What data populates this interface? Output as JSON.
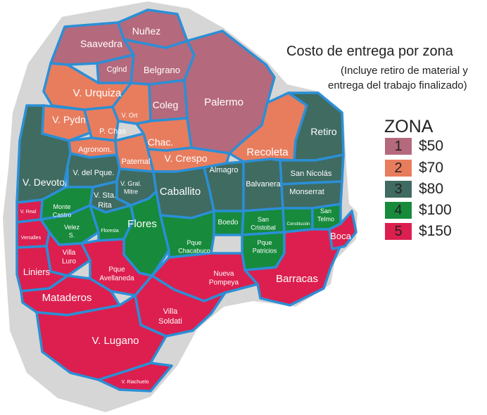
{
  "title": "Costo de entrega por zona",
  "subtitle_1": "(Incluye retiro de material y",
  "subtitle_2": "entrega del trabajo finalizado)",
  "legend": {
    "title": "ZONA",
    "items": [
      {
        "zone": "1",
        "price": "$50",
        "color": "#b5697c"
      },
      {
        "zone": "2",
        "price": "$70",
        "color": "#e87d5e"
      },
      {
        "zone": "3",
        "price": "$80",
        "color": "#3f6b61"
      },
      {
        "zone": "4",
        "price": "$100",
        "color": "#178a3c"
      },
      {
        "zone": "5",
        "price": "$150",
        "color": "#dc1f4f"
      }
    ]
  },
  "neighborhoods": [
    {
      "name": "Nuñez",
      "zone": 1
    },
    {
      "name": "Saavedra",
      "zone": 1
    },
    {
      "name": "Cglnd",
      "zone": 1
    },
    {
      "name": "Belgrano",
      "zone": 1
    },
    {
      "name": "Palermo",
      "zone": 1
    },
    {
      "name": "Coleg",
      "zone": 1
    },
    {
      "name": "V. Urquiza",
      "zone": 2
    },
    {
      "name": "V. Ort",
      "zone": 2
    },
    {
      "name": "V. Pydn",
      "zone": 2
    },
    {
      "name": "P. Chas",
      "zone": 2
    },
    {
      "name": "Chac.",
      "zone": 2
    },
    {
      "name": "Agronom.",
      "zone": 2
    },
    {
      "name": "Paternal",
      "zone": 2
    },
    {
      "name": "V. Crespo",
      "zone": 2
    },
    {
      "name": "Recoleta",
      "zone": 2
    },
    {
      "name": "Retiro",
      "zone": 3
    },
    {
      "name": "V. Devoto",
      "zone": 3
    },
    {
      "name": "V. del Pque.",
      "zone": 3
    },
    {
      "name": "Almagro",
      "zone": 3
    },
    {
      "name": "San Nicolás",
      "zone": 3
    },
    {
      "name": "V. Gral. Mitre",
      "zone": 3
    },
    {
      "name": "V. Sta. Rita",
      "zone": 3
    },
    {
      "name": "Caballito",
      "zone": 3
    },
    {
      "name": "Balvanera",
      "zone": 3
    },
    {
      "name": "Monserrat",
      "zone": 3
    },
    {
      "name": "Monte Castro",
      "zone": 4
    },
    {
      "name": "Velez S.",
      "zone": 4
    },
    {
      "name": "Floresta",
      "zone": 4
    },
    {
      "name": "Flores",
      "zone": 4
    },
    {
      "name": "Boedo",
      "zone": 4
    },
    {
      "name": "San Cristobal",
      "zone": 4
    },
    {
      "name": "Constitución",
      "zone": 4
    },
    {
      "name": "San Telmo",
      "zone": 4
    },
    {
      "name": "Pque Chacabuco",
      "zone": 4
    },
    {
      "name": "Pque Patricios",
      "zone": 4
    },
    {
      "name": "V. Real",
      "zone": 5
    },
    {
      "name": "Versalles",
      "zone": 5
    },
    {
      "name": "Villa Luro",
      "zone": 5
    },
    {
      "name": "Liniers",
      "zone": 5
    },
    {
      "name": "Pque Avellaneda",
      "zone": 5
    },
    {
      "name": "Mataderos",
      "zone": 5
    },
    {
      "name": "Nueva Pompeya",
      "zone": 5
    },
    {
      "name": "Barracas",
      "zone": 5
    },
    {
      "name": "Boca",
      "zone": 5
    },
    {
      "name": "Villa Soldati",
      "zone": 5
    },
    {
      "name": "V. Lugano",
      "zone": 5
    },
    {
      "name": "V. Riachuelo",
      "zone": 5
    }
  ]
}
